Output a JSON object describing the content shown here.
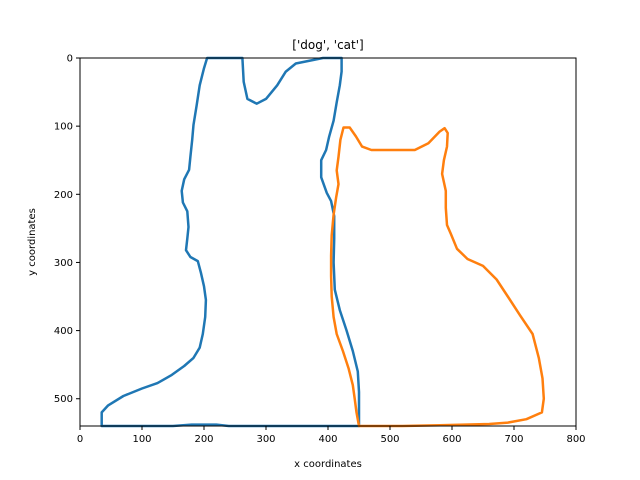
{
  "chart_data": {
    "type": "line",
    "title": "['dog', 'cat']",
    "xlabel": "x coordinates",
    "ylabel": "y coordinates",
    "xlim": [
      0,
      800
    ],
    "ylim": [
      540,
      0
    ],
    "y_inverted": true,
    "grid": false,
    "legend": "none",
    "xticks": [
      0,
      100,
      200,
      300,
      400,
      500,
      600,
      700,
      800
    ],
    "yticks": [
      0,
      100,
      200,
      300,
      400,
      500
    ],
    "series": [
      {
        "color": "#1f77b4",
        "points": [
          [
            35,
            540
          ],
          [
            35,
            520
          ],
          [
            45,
            510
          ],
          [
            70,
            496
          ],
          [
            100,
            485
          ],
          [
            125,
            477
          ],
          [
            148,
            465
          ],
          [
            168,
            452
          ],
          [
            183,
            440
          ],
          [
            193,
            425
          ],
          [
            198,
            405
          ],
          [
            202,
            380
          ],
          [
            203,
            355
          ],
          [
            200,
            335
          ],
          [
            195,
            315
          ],
          [
            190,
            298
          ],
          [
            178,
            292
          ],
          [
            171,
            282
          ],
          [
            173,
            265
          ],
          [
            175,
            248
          ],
          [
            173,
            225
          ],
          [
            166,
            212
          ],
          [
            164,
            195
          ],
          [
            168,
            178
          ],
          [
            176,
            164
          ],
          [
            178,
            145
          ],
          [
            181,
            120
          ],
          [
            183,
            98
          ],
          [
            188,
            70
          ],
          [
            193,
            40
          ],
          [
            200,
            15
          ],
          [
            205,
            0
          ],
          [
            262,
            0
          ],
          [
            264,
            35
          ],
          [
            270,
            60
          ],
          [
            285,
            67
          ],
          [
            300,
            60
          ],
          [
            318,
            40
          ],
          [
            332,
            20
          ],
          [
            348,
            8
          ],
          [
            392,
            0
          ],
          [
            422,
            0
          ],
          [
            422,
            20
          ],
          [
            419,
            40
          ],
          [
            414,
            65
          ],
          [
            409,
            92
          ],
          [
            402,
            115
          ],
          [
            397,
            135
          ],
          [
            389,
            150
          ],
          [
            389,
            175
          ],
          [
            398,
            198
          ],
          [
            405,
            210
          ],
          [
            410,
            232
          ],
          [
            410,
            265
          ],
          [
            409,
            300
          ],
          [
            411,
            340
          ],
          [
            419,
            370
          ],
          [
            430,
            400
          ],
          [
            440,
            430
          ],
          [
            448,
            460
          ],
          [
            450,
            490
          ],
          [
            450,
            520
          ],
          [
            450,
            540
          ],
          [
            440,
            540
          ],
          [
            420,
            540
          ],
          [
            360,
            540
          ],
          [
            320,
            540
          ],
          [
            280,
            540
          ],
          [
            240,
            540
          ],
          [
            220,
            538
          ],
          [
            180,
            538
          ],
          [
            150,
            540
          ],
          [
            100,
            540
          ],
          [
            60,
            540
          ],
          [
            35,
            540
          ]
        ]
      },
      {
        "color": "#ff7f0e",
        "points": [
          [
            450,
            540
          ],
          [
            446,
            520
          ],
          [
            443,
            500
          ],
          [
            440,
            480
          ],
          [
            433,
            455
          ],
          [
            424,
            430
          ],
          [
            414,
            405
          ],
          [
            409,
            380
          ],
          [
            406,
            350
          ],
          [
            405,
            320
          ],
          [
            405,
            290
          ],
          [
            406,
            260
          ],
          [
            409,
            230
          ],
          [
            413,
            205
          ],
          [
            417,
            185
          ],
          [
            414,
            165
          ],
          [
            417,
            145
          ],
          [
            420,
            120
          ],
          [
            425,
            102
          ],
          [
            435,
            102
          ],
          [
            445,
            115
          ],
          [
            455,
            130
          ],
          [
            470,
            135
          ],
          [
            500,
            135
          ],
          [
            540,
            135
          ],
          [
            562,
            125
          ],
          [
            580,
            108
          ],
          [
            588,
            103
          ],
          [
            593,
            110
          ],
          [
            592,
            130
          ],
          [
            587,
            150
          ],
          [
            584,
            170
          ],
          [
            590,
            195
          ],
          [
            590,
            220
          ],
          [
            592,
            245
          ],
          [
            598,
            258
          ],
          [
            608,
            280
          ],
          [
            625,
            295
          ],
          [
            650,
            305
          ],
          [
            672,
            325
          ],
          [
            690,
            350
          ],
          [
            710,
            378
          ],
          [
            730,
            405
          ],
          [
            740,
            440
          ],
          [
            746,
            470
          ],
          [
            748,
            500
          ],
          [
            745,
            520
          ],
          [
            720,
            530
          ],
          [
            690,
            535
          ],
          [
            660,
            537
          ],
          [
            620,
            538
          ],
          [
            580,
            539
          ],
          [
            520,
            540
          ],
          [
            470,
            540
          ],
          [
            450,
            540
          ]
        ]
      }
    ]
  }
}
